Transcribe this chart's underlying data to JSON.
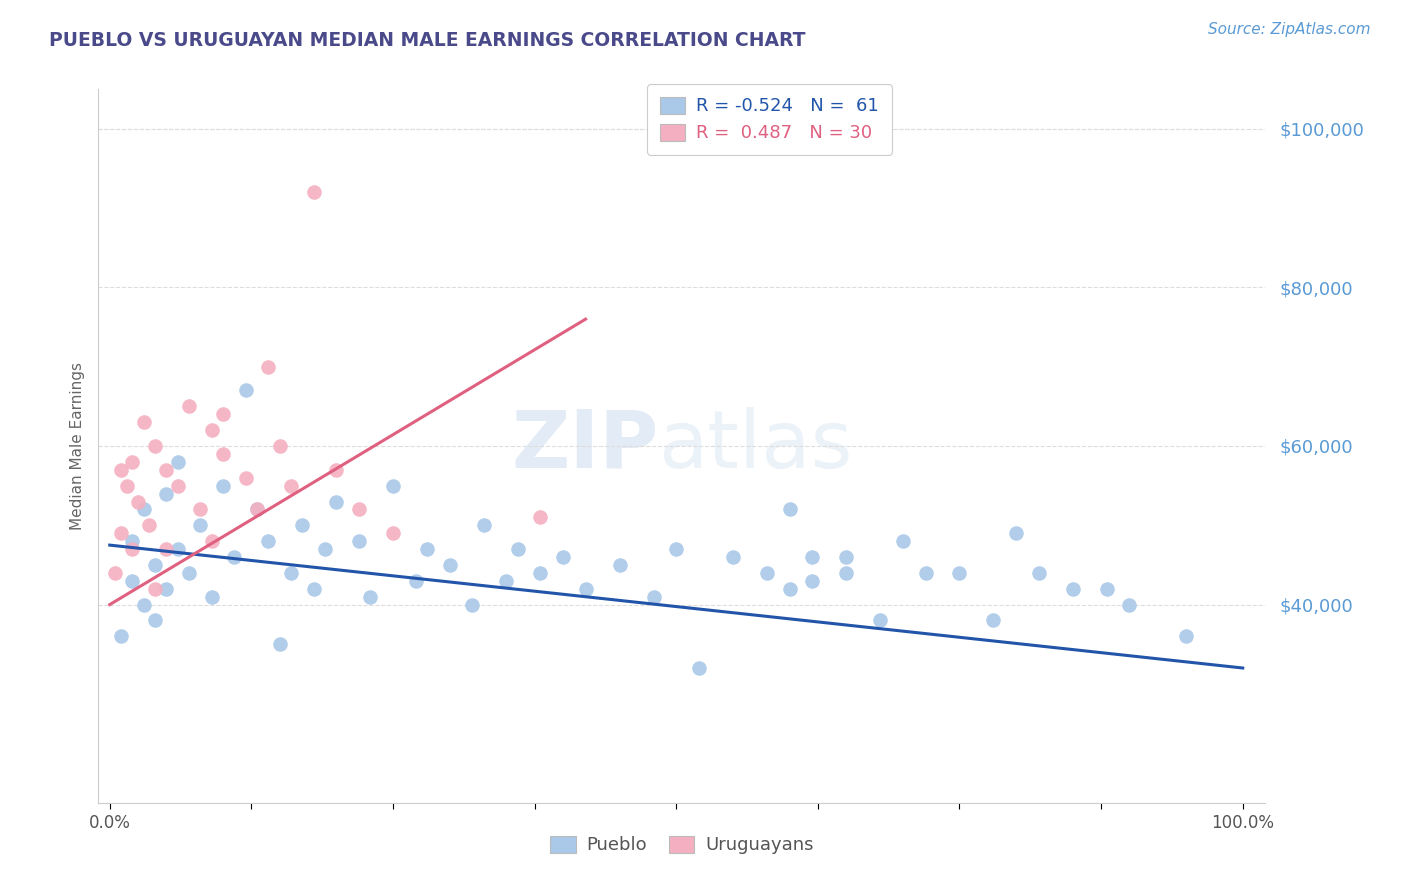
{
  "title": "PUEBLO VS URUGUAYAN MEDIAN MALE EARNINGS CORRELATION CHART",
  "source": "Source: ZipAtlas.com",
  "ylabel": "Median Male Earnings",
  "title_color": "#4a4a8a",
  "source_color": "#5a9ad5",
  "axis_label_color": "#666666",
  "background_color": "#ffffff",
  "legend_R_blue": "-0.524",
  "legend_N_blue": "61",
  "legend_R_pink": "0.487",
  "legend_N_pink": "30",
  "blue_color": "#aac8e8",
  "pink_color": "#f4b0c0",
  "blue_line_color": "#2255aa",
  "pink_line_color": "#e06080",
  "grid_color": "#dddddd",
  "ylim": [
    15000,
    105000
  ],
  "xlim": [
    -0.01,
    1.02
  ],
  "pueblo_x": [
    0.01,
    0.02,
    0.02,
    0.03,
    0.03,
    0.04,
    0.04,
    0.05,
    0.05,
    0.06,
    0.06,
    0.07,
    0.08,
    0.09,
    0.1,
    0.11,
    0.12,
    0.13,
    0.14,
    0.15,
    0.16,
    0.17,
    0.18,
    0.19,
    0.2,
    0.22,
    0.23,
    0.25,
    0.27,
    0.28,
    0.3,
    0.32,
    0.33,
    0.35,
    0.36,
    0.38,
    0.4,
    0.42,
    0.45,
    0.48,
    0.5,
    0.52,
    0.55,
    0.58,
    0.6,
    0.6,
    0.62,
    0.62,
    0.65,
    0.65,
    0.68,
    0.7,
    0.72,
    0.75,
    0.78,
    0.8,
    0.82,
    0.85,
    0.88,
    0.9,
    0.95
  ],
  "pueblo_y": [
    36000,
    43000,
    48000,
    40000,
    52000,
    38000,
    45000,
    42000,
    54000,
    47000,
    58000,
    44000,
    50000,
    41000,
    55000,
    46000,
    67000,
    52000,
    48000,
    35000,
    44000,
    50000,
    42000,
    47000,
    53000,
    48000,
    41000,
    55000,
    43000,
    47000,
    45000,
    40000,
    50000,
    43000,
    47000,
    44000,
    46000,
    42000,
    45000,
    41000,
    47000,
    32000,
    46000,
    44000,
    42000,
    52000,
    43000,
    46000,
    44000,
    46000,
    38000,
    48000,
    44000,
    44000,
    38000,
    49000,
    44000,
    42000,
    42000,
    40000,
    36000
  ],
  "uruguayan_x": [
    0.005,
    0.01,
    0.01,
    0.015,
    0.02,
    0.02,
    0.025,
    0.03,
    0.035,
    0.04,
    0.04,
    0.05,
    0.05,
    0.06,
    0.07,
    0.08,
    0.09,
    0.09,
    0.1,
    0.1,
    0.12,
    0.13,
    0.14,
    0.15,
    0.16,
    0.18,
    0.2,
    0.22,
    0.25,
    0.38
  ],
  "uruguayan_y": [
    44000,
    57000,
    49000,
    55000,
    58000,
    47000,
    53000,
    63000,
    50000,
    60000,
    42000,
    57000,
    47000,
    55000,
    65000,
    52000,
    62000,
    48000,
    59000,
    64000,
    56000,
    52000,
    70000,
    60000,
    55000,
    92000,
    57000,
    52000,
    49000,
    51000
  ]
}
